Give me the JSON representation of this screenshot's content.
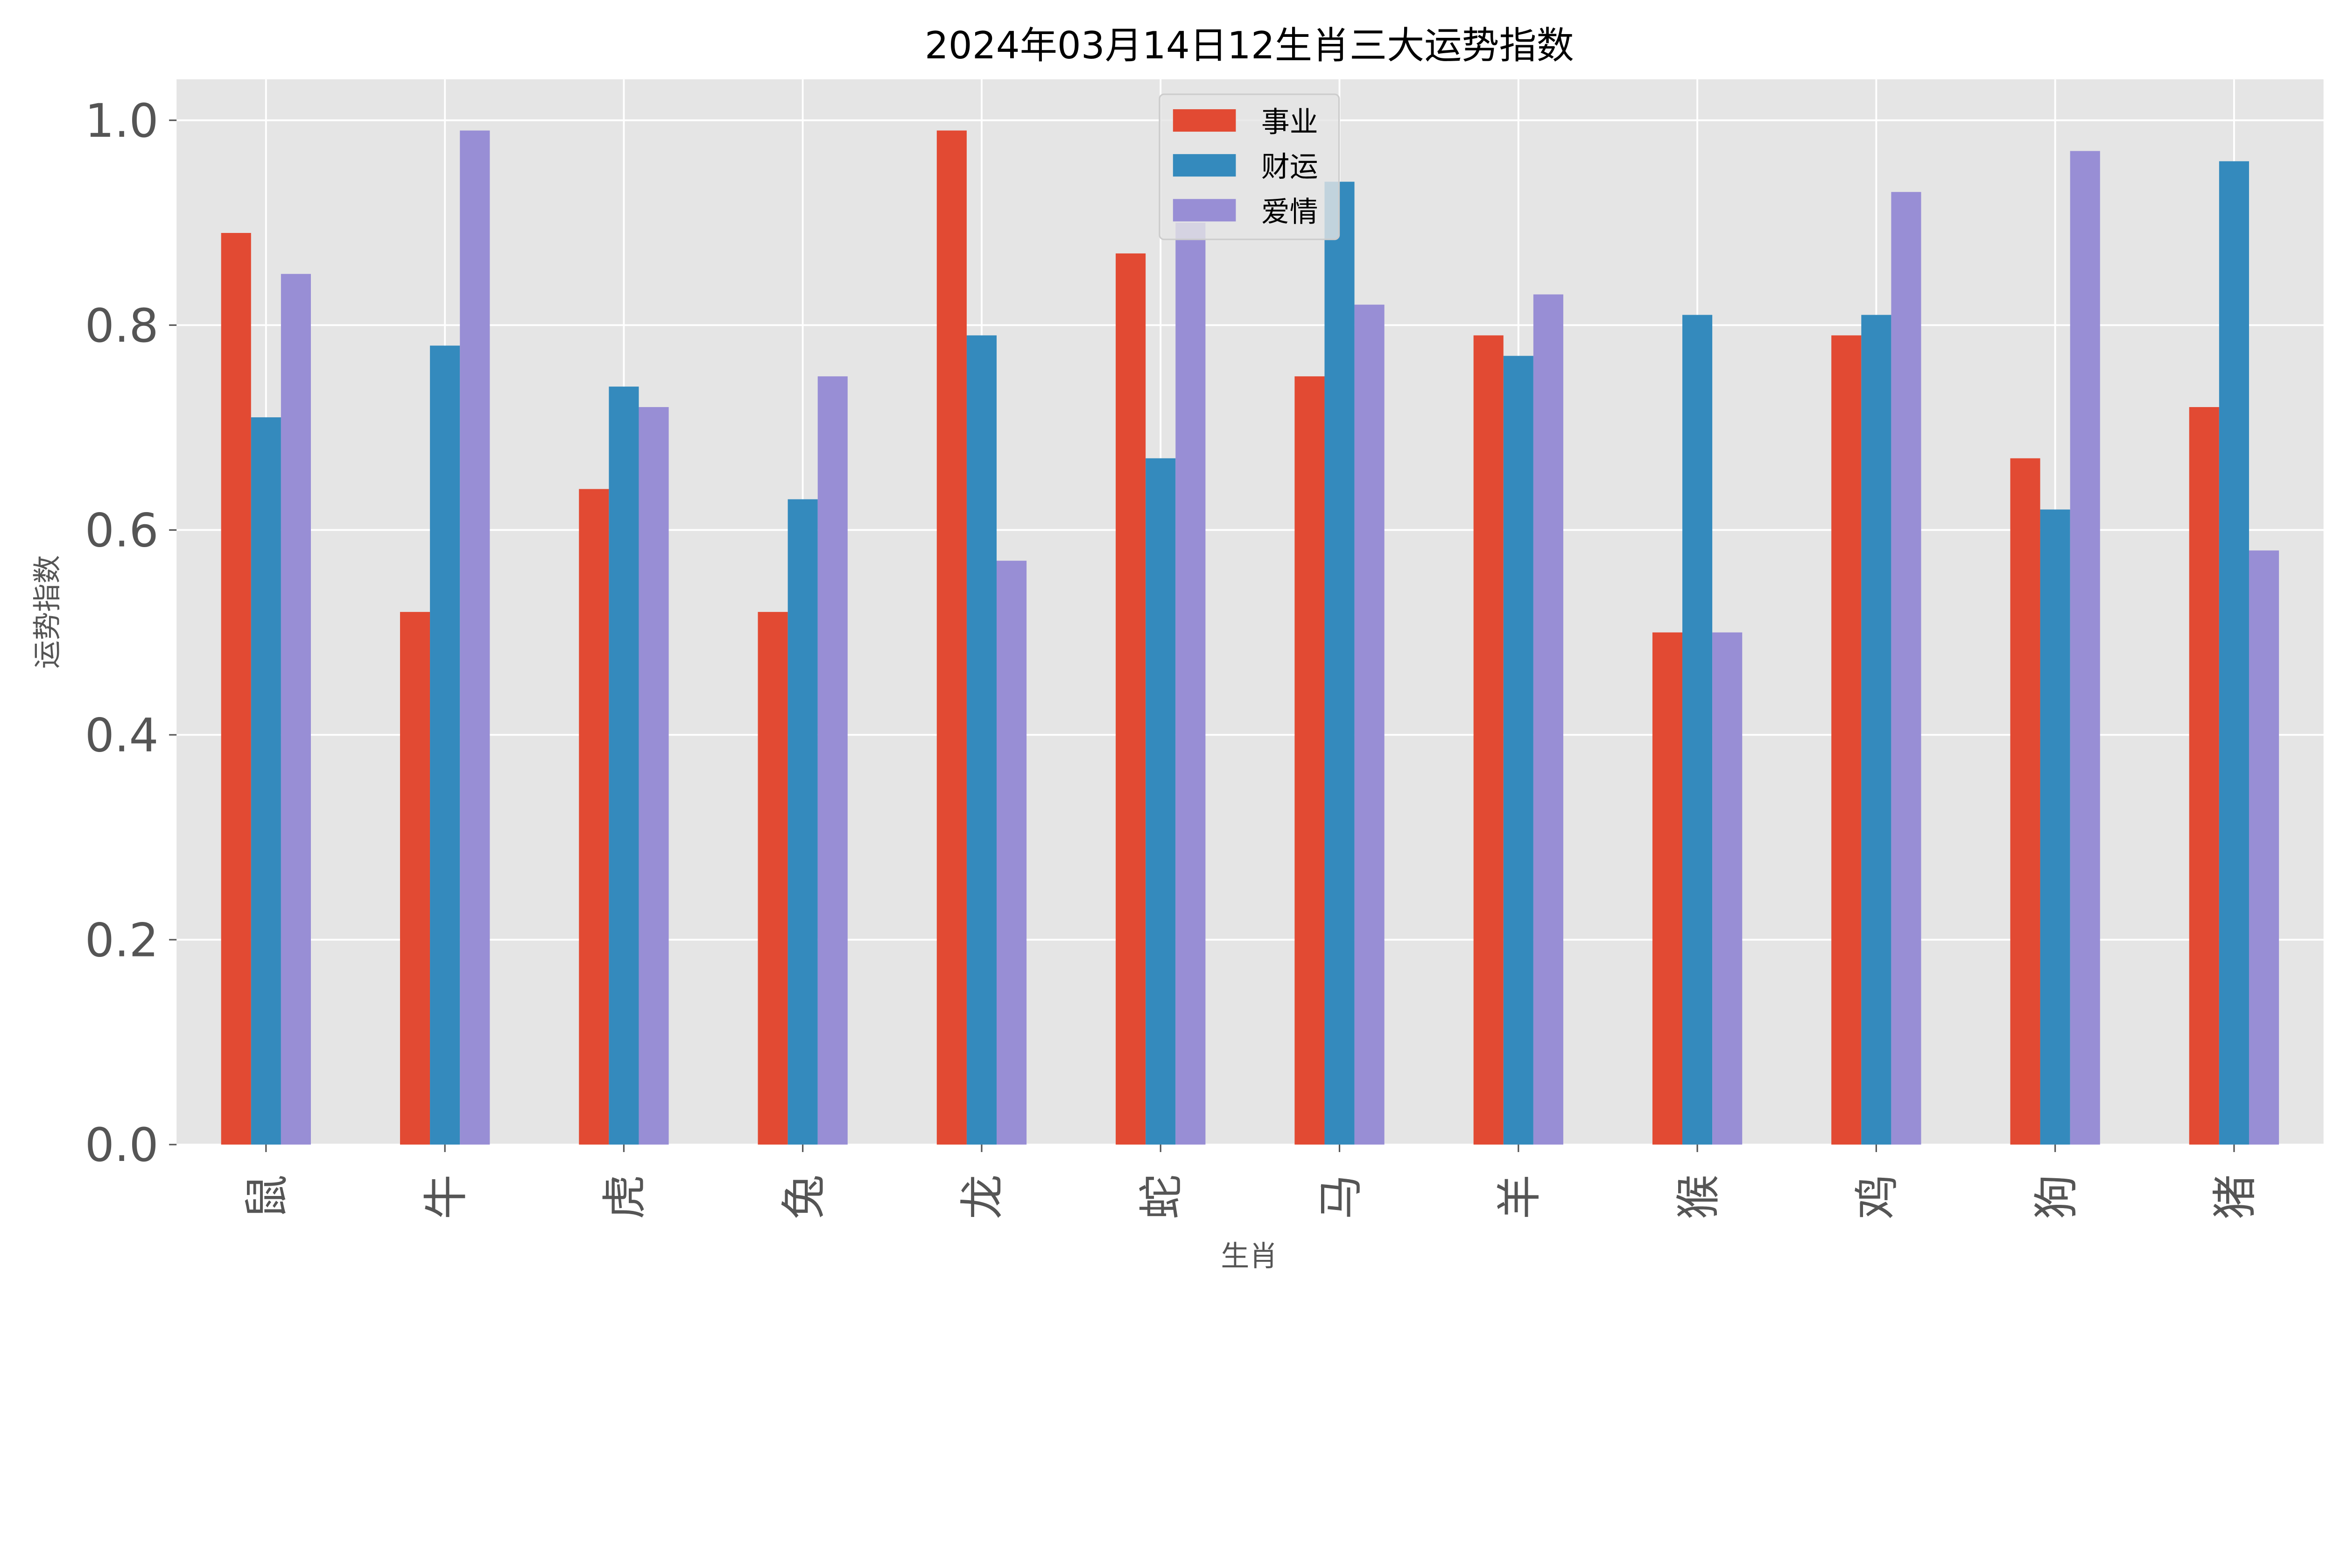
{
  "chart_data": {
    "type": "bar",
    "title": "2024年03月14日12生肖三大运势指数",
    "xlabel": "生肖",
    "ylabel": "运势指数",
    "categories": [
      "鼠",
      "牛",
      "虎",
      "兔",
      "龙",
      "蛇",
      "马",
      "羊",
      "猴",
      "鸡",
      "狗",
      "猪"
    ],
    "series": [
      {
        "name": "事业",
        "color": "#E24A33",
        "values": [
          0.89,
          0.52,
          0.64,
          0.52,
          0.99,
          0.87,
          0.75,
          0.79,
          0.5,
          0.79,
          0.67,
          0.72
        ]
      },
      {
        "name": "财运",
        "color": "#348ABD",
        "values": [
          0.71,
          0.78,
          0.74,
          0.63,
          0.79,
          0.67,
          0.94,
          0.77,
          0.81,
          0.81,
          0.62,
          0.96
        ]
      },
      {
        "name": "爱情",
        "color": "#988ED5",
        "values": [
          0.85,
          0.99,
          0.72,
          0.75,
          0.57,
          0.9,
          0.82,
          0.83,
          0.5,
          0.93,
          0.97,
          0.58
        ]
      }
    ],
    "ylim": [
      0,
      1.04
    ],
    "yticks": [
      "0.0",
      "0.2",
      "0.4",
      "0.6",
      "0.8",
      "1.0"
    ],
    "grid": true,
    "legend_position": "top-center",
    "background": "#E5E5E5"
  }
}
